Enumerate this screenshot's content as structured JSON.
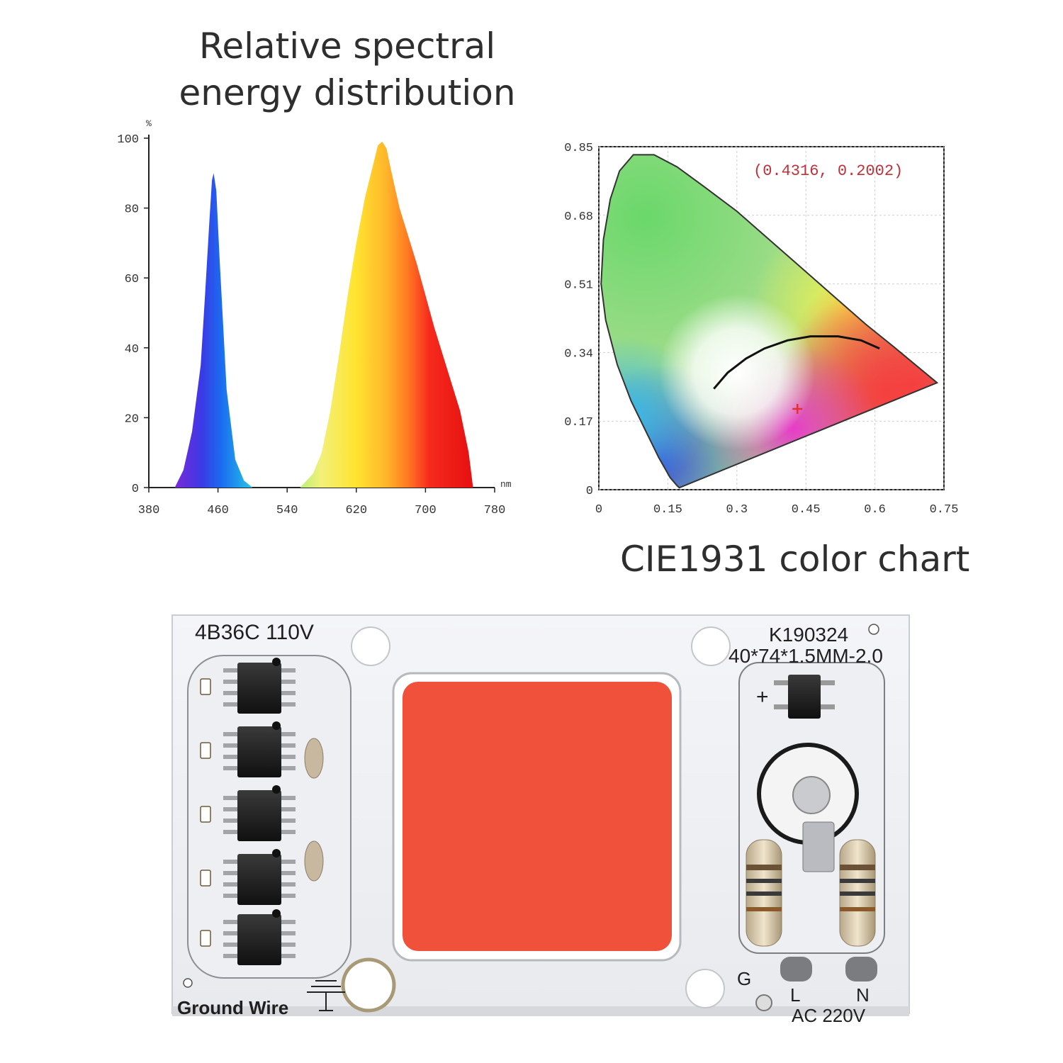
{
  "spectrum_title": {
    "line1": "Relative spectral",
    "line2": "energy distribution"
  },
  "cie_title": "CIE1931 color chart",
  "chart_data": [
    {
      "type": "area",
      "title": "Relative spectral energy distribution",
      "xlabel": "nm",
      "ylabel": "%",
      "xlim": [
        380,
        780
      ],
      "ylim": [
        0,
        100
      ],
      "x_ticks": [
        "380",
        "460",
        "540",
        "620",
        "700",
        "780"
      ],
      "y_ticks": [
        "0",
        "20",
        "40",
        "60",
        "80",
        "100"
      ],
      "series": [
        {
          "x": [
            410,
            420,
            430,
            440,
            445,
            450,
            453,
            455,
            458,
            462,
            470,
            480,
            490,
            500
          ],
          "y": [
            0,
            5,
            16,
            35,
            55,
            76,
            88,
            90,
            85,
            65,
            28,
            8,
            2,
            0
          ]
        },
        {
          "x": [
            555,
            570,
            580,
            590,
            600,
            610,
            620,
            630,
            640,
            645,
            650,
            655,
            660,
            670,
            680,
            690,
            700,
            710,
            720,
            730,
            740,
            750,
            755
          ],
          "y": [
            0,
            4,
            10,
            22,
            38,
            55,
            70,
            83,
            93,
            98,
            99,
            97,
            91,
            80,
            72,
            64,
            55,
            46,
            38,
            30,
            22,
            10,
            0
          ]
        }
      ],
      "grid": false
    },
    {
      "type": "scatter",
      "title": "CIE1931 color chart",
      "xlim": [
        0,
        0.75
      ],
      "ylim": [
        0,
        0.85
      ],
      "x_ticks": [
        "0",
        "0.15",
        "0.3",
        "0.45",
        "0.6",
        "0.75"
      ],
      "y_ticks": [
        "0",
        "0.17",
        "0.34",
        "0.51",
        "0.68",
        "0.85"
      ],
      "point": {
        "x": 0.4316,
        "y": 0.2002,
        "label": "(0.4316, 0.2002)"
      },
      "grid": true
    }
  ],
  "board": {
    "model": "4B36C  110V",
    "code": "K190324",
    "size": "40*74*1.5MM-2.0",
    "ground_label": "Ground  Wire",
    "g_label": "G",
    "l_label": "L",
    "n_label": "N",
    "ac_label": "AC  220V",
    "plus_label": "+",
    "led_color": "#f0513b"
  }
}
